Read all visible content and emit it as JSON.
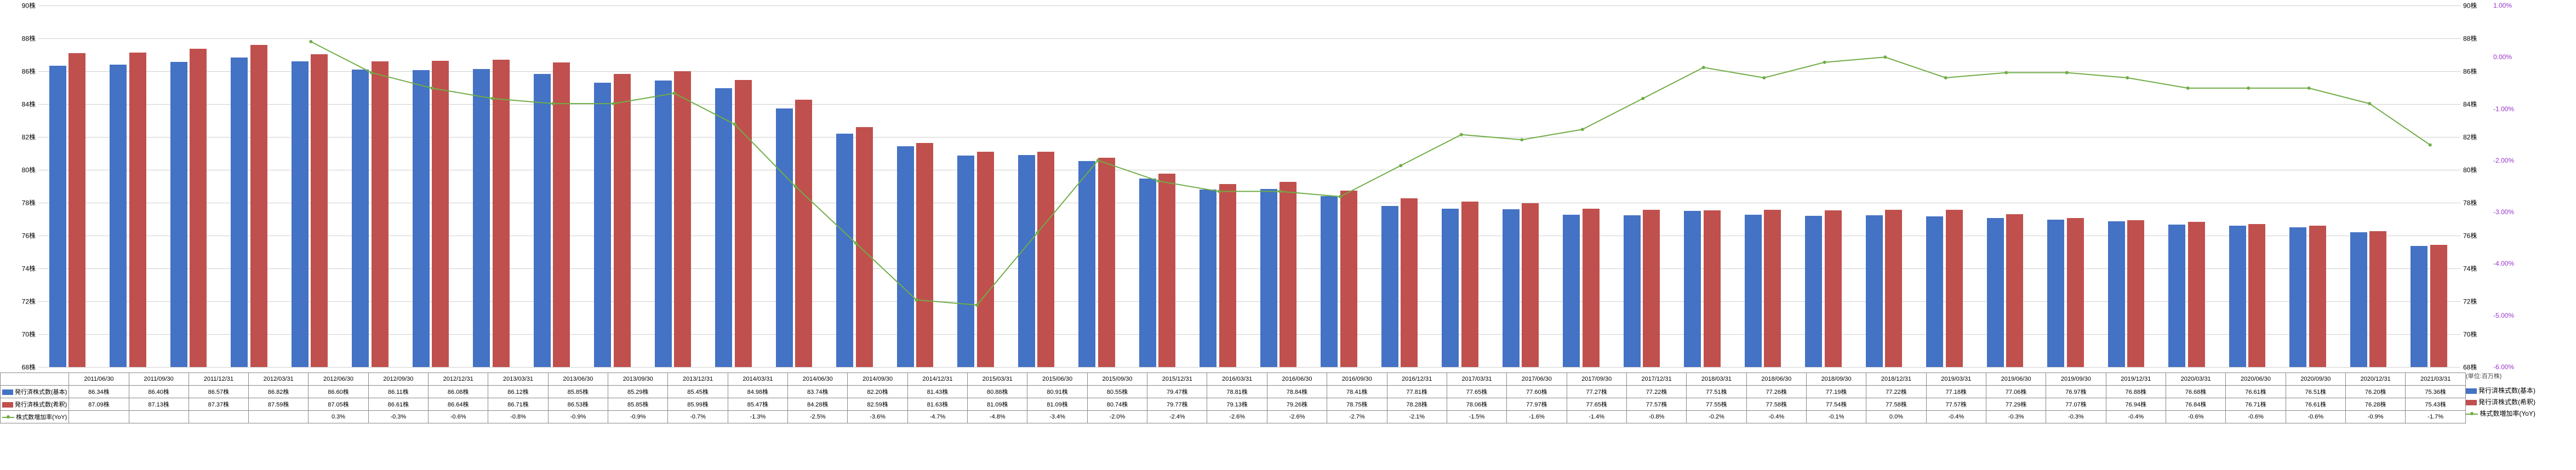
{
  "chart": {
    "type": "bar+line",
    "background_color": "#ffffff",
    "grid_color": "#d0d0d0",
    "unit_label": "(単位:百万株)",
    "y_left": {
      "min": 68,
      "max": 90,
      "step": 2,
      "suffix": "株"
    },
    "y_right_pct": {
      "min": -6.0,
      "max": 1.0,
      "step": 1.0,
      "suffix": "%"
    },
    "series": {
      "basic": {
        "label": "発行済株式数(基本)",
        "color": "#4472c4",
        "legend_icon": "bar"
      },
      "diluted": {
        "label": "発行済株式数(希釈)",
        "color": "#c0504d",
        "legend_icon": "bar"
      },
      "yoy": {
        "label": "株式数増加率(YoY)",
        "color": "#70ad47",
        "legend_icon": "line",
        "marker": "circle",
        "line_width": 2,
        "marker_size": 6
      }
    },
    "periods": [
      {
        "label": "2011/06/30",
        "basic": 86.34,
        "diluted": 87.09,
        "yoy": null
      },
      {
        "label": "2011/09/30",
        "basic": 86.4,
        "diluted": 87.13,
        "yoy": null
      },
      {
        "label": "2011/12/31",
        "basic": 86.57,
        "diluted": 87.37,
        "yoy": null
      },
      {
        "label": "2012/03/31",
        "basic": 86.82,
        "diluted": 87.59,
        "yoy": null
      },
      {
        "label": "2012/06/30",
        "basic": 86.6,
        "diluted": 87.05,
        "yoy": 0.3
      },
      {
        "label": "2012/09/30",
        "basic": 86.11,
        "diluted": 86.61,
        "yoy": -0.3
      },
      {
        "label": "2012/12/31",
        "basic": 86.08,
        "diluted": 86.64,
        "yoy": -0.6
      },
      {
        "label": "2013/03/31",
        "basic": 86.12,
        "diluted": 86.71,
        "yoy": -0.8
      },
      {
        "label": "2013/06/30",
        "basic": 85.85,
        "diluted": 86.53,
        "yoy": -0.9
      },
      {
        "label": "2013/09/30",
        "basic": 85.29,
        "diluted": 85.85,
        "yoy": -0.9
      },
      {
        "label": "2013/12/31",
        "basic": 85.45,
        "diluted": 85.99,
        "yoy": -0.7
      },
      {
        "label": "2014/03/31",
        "basic": 84.98,
        "diluted": 85.47,
        "yoy": -1.3
      },
      {
        "label": "2014/06/30",
        "basic": 83.74,
        "diluted": 84.28,
        "yoy": -2.5
      },
      {
        "label": "2014/09/30",
        "basic": 82.2,
        "diluted": 82.59,
        "yoy": -3.6
      },
      {
        "label": "2014/12/31",
        "basic": 81.43,
        "diluted": 81.63,
        "yoy": -4.7
      },
      {
        "label": "2015/03/31",
        "basic": 80.88,
        "diluted": 81.09,
        "yoy": -4.8
      },
      {
        "label": "2015/06/30",
        "basic": 80.91,
        "diluted": 81.09,
        "yoy": -3.4
      },
      {
        "label": "2015/09/30",
        "basic": 80.55,
        "diluted": 80.74,
        "yoy": -2.0
      },
      {
        "label": "2015/12/31",
        "basic": 79.47,
        "diluted": 79.77,
        "yoy": -2.4
      },
      {
        "label": "2016/03/31",
        "basic": 78.81,
        "diluted": 79.13,
        "yoy": -2.6
      },
      {
        "label": "2016/06/30",
        "basic": 78.84,
        "diluted": 79.26,
        "yoy": -2.6
      },
      {
        "label": "2016/09/30",
        "basic": 78.41,
        "diluted": 78.75,
        "yoy": -2.7
      },
      {
        "label": "2016/12/31",
        "basic": 77.81,
        "diluted": 78.28,
        "yoy": -2.1
      },
      {
        "label": "2017/03/31",
        "basic": 77.65,
        "diluted": 78.06,
        "yoy": -1.5
      },
      {
        "label": "2017/06/30",
        "basic": 77.6,
        "diluted": 77.97,
        "yoy": -1.6
      },
      {
        "label": "2017/09/30",
        "basic": 77.27,
        "diluted": 77.65,
        "yoy": -1.4
      },
      {
        "label": "2017/12/31",
        "basic": 77.22,
        "diluted": 77.57,
        "yoy": -0.8
      },
      {
        "label": "2018/03/31",
        "basic": 77.51,
        "diluted": 77.55,
        "yoy": -0.2
      },
      {
        "label": "2018/06/30",
        "basic": 77.26,
        "diluted": 77.58,
        "yoy": -0.4
      },
      {
        "label": "2018/09/30",
        "basic": 77.19,
        "diluted": 77.54,
        "yoy": -0.1
      },
      {
        "label": "2018/12/31",
        "basic": 77.22,
        "diluted": 77.58,
        "yoy": 0.0
      },
      {
        "label": "2019/03/31",
        "basic": 77.18,
        "diluted": 77.57,
        "yoy": -0.4
      },
      {
        "label": "2019/06/30",
        "basic": 77.06,
        "diluted": 77.29,
        "yoy": -0.3
      },
      {
        "label": "2019/09/30",
        "basic": 76.97,
        "diluted": 77.07,
        "yoy": -0.3
      },
      {
        "label": "2019/12/31",
        "basic": 76.88,
        "diluted": 76.94,
        "yoy": -0.4
      },
      {
        "label": "2020/03/31",
        "basic": 76.68,
        "diluted": 76.84,
        "yoy": -0.6
      },
      {
        "label": "2020/06/30",
        "basic": 76.61,
        "diluted": 76.71,
        "yoy": -0.6
      },
      {
        "label": "2020/09/30",
        "basic": 76.51,
        "diluted": 76.61,
        "yoy": -0.6
      },
      {
        "label": "2020/12/31",
        "basic": 76.2,
        "diluted": 76.28,
        "yoy": -0.9
      },
      {
        "label": "2021/03/31",
        "basic": 75.36,
        "diluted": 75.43,
        "yoy": -1.7
      }
    ]
  }
}
